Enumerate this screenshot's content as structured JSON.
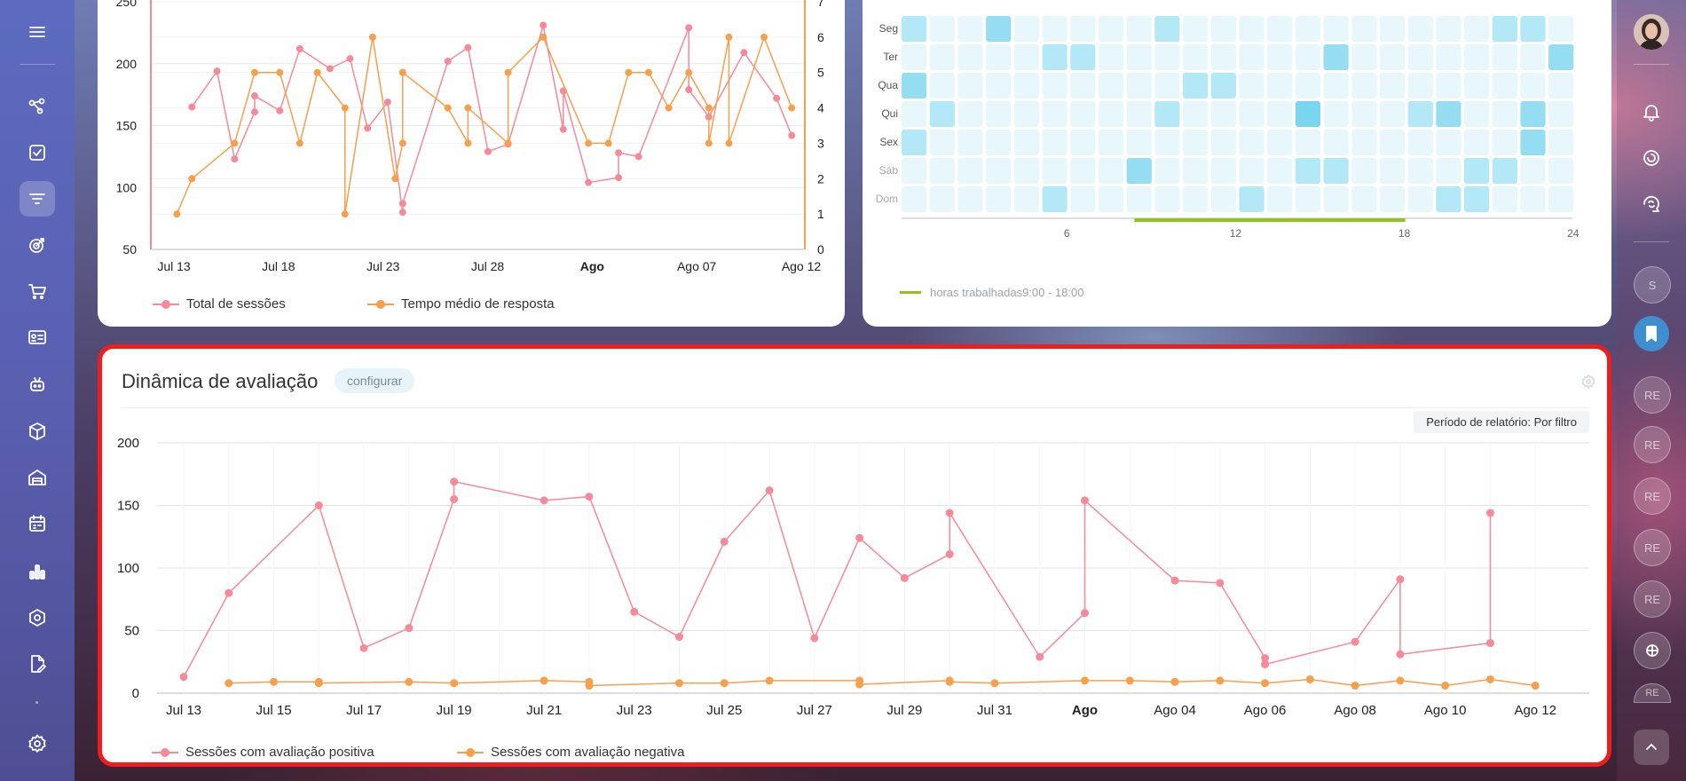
{
  "left_sidebar": {
    "icons": [
      "menu-icon",
      "share-icon",
      "checkbox-icon",
      "filter-icon",
      "target-icon",
      "cart-icon",
      "id-card-icon",
      "robot-icon",
      "box-icon",
      "warehouse-icon",
      "calendar-icon",
      "bar-chart-icon",
      "hexagon-icon",
      "document-edit-icon",
      "settings-icon"
    ]
  },
  "right_sidebar": {
    "avatar_label": "avatar",
    "circle_labels": [
      "S",
      "RE",
      "RE",
      "RE",
      "RE",
      "RE",
      "RE"
    ]
  },
  "colors": {
    "positive": "#f48a9a",
    "negative": "#f6a04d",
    "accent_red": "#ef1d1d",
    "heat_light": "#e7f7fc",
    "heat_mid": "#b3e8f7",
    "heat_dark": "#7ad6ef",
    "worked_hours": "#8fc31f"
  },
  "sessions_chart": {
    "legend": [
      "Total de sessões",
      "Tempo médio de resposta"
    ],
    "x_ticks": [
      "Jul 13",
      "Jul 18",
      "Jul 23",
      "Jul 28",
      "Ago",
      "Ago 07",
      "Ago 12"
    ],
    "y_left_ticks": [
      "50",
      "100",
      "150",
      "200",
      "250"
    ],
    "y_right_ticks": [
      "0",
      "1",
      "2",
      "3",
      "4",
      "5",
      "6",
      "7"
    ]
  },
  "heatmap": {
    "days": [
      "Seg",
      "Ter",
      "Qua",
      "Qui",
      "Sex",
      "Sáb",
      "Dom"
    ],
    "hours_ticks": [
      "6",
      "12",
      "18",
      "24"
    ],
    "legend_label": "horas trabalhadas",
    "legend_range": "9:00 - 18:00"
  },
  "rating_dynamics": {
    "title": "Dinâmica de avaliação",
    "configure_label": "configurar",
    "period_label": "Período de relatório: Por filtro",
    "legend_positive": "Sessões com avaliação positiva",
    "legend_negative": "Sessões com avaliação negativa",
    "x_ticks": [
      "Jul 13",
      "Jul 15",
      "Jul 17",
      "Jul 19",
      "Jul 21",
      "Jul 23",
      "Jul 25",
      "Jul 27",
      "Jul 29",
      "Jul 31",
      "Ago",
      "Ago 04",
      "Ago 06",
      "Ago 08",
      "Ago 10",
      "Ago 12"
    ],
    "y_ticks": [
      "0",
      "50",
      "100",
      "150",
      "200"
    ]
  },
  "chart_data": [
    {
      "type": "line",
      "title": "",
      "y_left_range": [
        50,
        250
      ],
      "y_right_range": [
        0,
        7
      ],
      "x_range": [
        0,
        30
      ],
      "series": [
        {
          "name": "Total de sessões",
          "axis": "left",
          "points": [
            [
              1,
              165
            ],
            [
              2,
              194
            ],
            [
              2.7,
              123
            ],
            [
              3.5,
              161
            ],
            [
              3.5,
              174
            ],
            [
              4.5,
              162
            ],
            [
              5.3,
              212
            ],
            [
              6.5,
              196
            ],
            [
              7.3,
              204
            ],
            [
              8,
              148
            ],
            [
              8.8,
              169
            ],
            [
              9.4,
              80
            ],
            [
              9.4,
              87
            ],
            [
              11.2,
              202
            ],
            [
              12,
              213
            ],
            [
              12.8,
              129
            ],
            [
              13.6,
              135
            ],
            [
              15,
              231
            ],
            [
              15.8,
              147
            ],
            [
              15.8,
              178
            ],
            [
              16.8,
              104
            ],
            [
              18,
              108
            ],
            [
              18,
              128
            ],
            [
              18.8,
              125
            ],
            [
              20.8,
              229
            ],
            [
              20.8,
              179
            ],
            [
              21.6,
              157
            ],
            [
              23,
              209
            ],
            [
              24.3,
              172
            ],
            [
              24.9,
              142
            ]
          ]
        },
        {
          "name": "Tempo médio de resposta",
          "axis": "right",
          "points": [
            [
              0.4,
              1
            ],
            [
              1,
              2
            ],
            [
              2.7,
              3
            ],
            [
              3.5,
              5
            ],
            [
              4.5,
              5
            ],
            [
              5.3,
              3
            ],
            [
              6,
              5
            ],
            [
              7.1,
              4
            ],
            [
              7.1,
              1
            ],
            [
              8.2,
              6
            ],
            [
              9.1,
              2
            ],
            [
              9.4,
              3
            ],
            [
              9.4,
              5
            ],
            [
              11.2,
              4
            ],
            [
              12,
              3
            ],
            [
              12,
              4
            ],
            [
              13.6,
              3
            ],
            [
              13.6,
              5
            ],
            [
              15,
              6
            ],
            [
              16.8,
              3
            ],
            [
              17.6,
              3
            ],
            [
              18.4,
              5
            ],
            [
              19.2,
              5
            ],
            [
              20,
              4
            ],
            [
              20.8,
              5
            ],
            [
              21.6,
              4
            ],
            [
              21.6,
              3
            ],
            [
              22.4,
              6
            ],
            [
              22.4,
              3
            ],
            [
              23.8,
              6
            ],
            [
              24.9,
              4
            ]
          ]
        }
      ]
    },
    {
      "type": "heatmap",
      "rows": [
        "Seg",
        "Ter",
        "Qua",
        "Qui",
        "Sex",
        "Sáb",
        "Dom"
      ],
      "columns": 24,
      "x_ticks": [
        6,
        12,
        18,
        24
      ],
      "worked_hours": [
        9,
        18
      ],
      "levels": [
        [
          1,
          0,
          0,
          2,
          0,
          0,
          0,
          0,
          0,
          1,
          0,
          0,
          0,
          0,
          0,
          0,
          0,
          0,
          0,
          0,
          0,
          1,
          1,
          0
        ],
        [
          0,
          0,
          0,
          0,
          0,
          1,
          1,
          0,
          0,
          0,
          0,
          0,
          0,
          0,
          0,
          2,
          0,
          0,
          0,
          0,
          0,
          0,
          0,
          2
        ],
        [
          2,
          0,
          0,
          0,
          0,
          0,
          0,
          0,
          0,
          0,
          1,
          1,
          0,
          0,
          0,
          0,
          0,
          0,
          0,
          0,
          0,
          0,
          0,
          0
        ],
        [
          0,
          1,
          0,
          0,
          0,
          0,
          0,
          0,
          0,
          1,
          0,
          0,
          0,
          0,
          3,
          0,
          0,
          0,
          1,
          2,
          0,
          0,
          2,
          0
        ],
        [
          1,
          0,
          0,
          0,
          0,
          0,
          0,
          0,
          0,
          0,
          0,
          0,
          0,
          0,
          0,
          0,
          0,
          0,
          0,
          0,
          0,
          0,
          2,
          0
        ],
        [
          0,
          0,
          0,
          0,
          0,
          0,
          0,
          0,
          2,
          0,
          0,
          0,
          0,
          0,
          1,
          1,
          0,
          0,
          0,
          0,
          1,
          1,
          0,
          0
        ],
        [
          0,
          0,
          0,
          0,
          0,
          1,
          0,
          0,
          0,
          0,
          0,
          0,
          1,
          0,
          0,
          0,
          0,
          0,
          0,
          1,
          1,
          0,
          0,
          0
        ]
      ]
    },
    {
      "type": "line",
      "title": "Dinâmica de avaliação",
      "ylim": [
        0,
        200
      ],
      "x_range": [
        0,
        31
      ],
      "series": [
        {
          "name": "Sessões com avaliação positiva",
          "points": [
            [
              0,
              13
            ],
            [
              1,
              80
            ],
            [
              3,
              150
            ],
            [
              4,
              36
            ],
            [
              5,
              52
            ],
            [
              6,
              155
            ],
            [
              6,
              169
            ],
            [
              8,
              154
            ],
            [
              9,
              157
            ],
            [
              10,
              65
            ],
            [
              11,
              45
            ],
            [
              12,
              121
            ],
            [
              13,
              162
            ],
            [
              14,
              44
            ],
            [
              15,
              124
            ],
            [
              16,
              92
            ],
            [
              17,
              111
            ],
            [
              17,
              144
            ],
            [
              19,
              29
            ],
            [
              20,
              64
            ],
            [
              20,
              154
            ],
            [
              22,
              90
            ],
            [
              23,
              88
            ],
            [
              24,
              28
            ],
            [
              24,
              23
            ],
            [
              26,
              41
            ],
            [
              27,
              91
            ],
            [
              27,
              31
            ],
            [
              29,
              40
            ],
            [
              29,
              144
            ]
          ]
        },
        {
          "name": "Sessões com avaliação negativa",
          "points": [
            [
              1,
              8
            ],
            [
              2,
              9
            ],
            [
              3,
              9
            ],
            [
              3,
              8
            ],
            [
              5,
              9
            ],
            [
              6,
              8
            ],
            [
              8,
              10
            ],
            [
              9,
              9
            ],
            [
              9,
              6
            ],
            [
              11,
              8
            ],
            [
              12,
              8
            ],
            [
              13,
              10
            ],
            [
              15,
              10
            ],
            [
              15,
              7
            ],
            [
              17,
              10
            ],
            [
              17,
              9
            ],
            [
              18,
              8
            ],
            [
              20,
              10
            ],
            [
              21,
              10
            ],
            [
              22,
              9
            ],
            [
              23,
              10
            ],
            [
              24,
              8
            ],
            [
              25,
              11
            ],
            [
              26,
              6
            ],
            [
              27,
              10
            ],
            [
              28,
              6
            ],
            [
              29,
              11
            ],
            [
              30,
              6
            ]
          ]
        }
      ]
    }
  ]
}
